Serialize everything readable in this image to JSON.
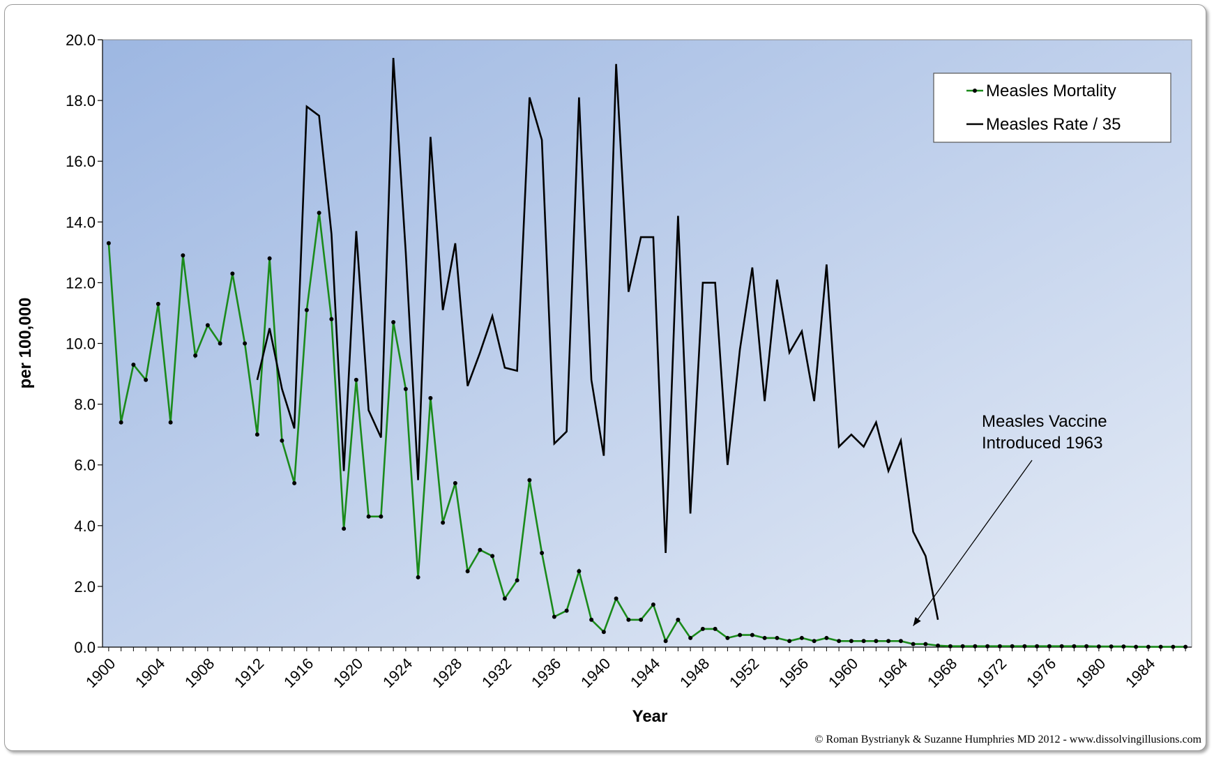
{
  "chart_data": {
    "type": "line",
    "xlabel": "Year",
    "ylabel": "per 100,000",
    "ylim": [
      0,
      20
    ],
    "y_ticks": [
      "0.0",
      "2.0",
      "4.0",
      "6.0",
      "8.0",
      "10.0",
      "12.0",
      "14.0",
      "16.0",
      "18.0",
      "20.0"
    ],
    "x_ticks": [
      "1900",
      "1904",
      "1908",
      "1912",
      "1916",
      "1920",
      "1924",
      "1928",
      "1932",
      "1936",
      "1940",
      "1944",
      "1948",
      "1952",
      "1956",
      "1960",
      "1964",
      "1968",
      "1972",
      "1976",
      "1980",
      "1984"
    ],
    "xlim": [
      1899.5,
      1987.5
    ],
    "series": [
      {
        "name": "Measles Mortality",
        "color": "#1a8a1a",
        "marker_color": "#000000",
        "x": [
          1900,
          1901,
          1902,
          1903,
          1904,
          1905,
          1906,
          1907,
          1908,
          1909,
          1910,
          1911,
          1912,
          1913,
          1914,
          1915,
          1916,
          1917,
          1918,
          1919,
          1920,
          1921,
          1922,
          1923,
          1924,
          1925,
          1926,
          1927,
          1928,
          1929,
          1930,
          1931,
          1932,
          1933,
          1934,
          1935,
          1936,
          1937,
          1938,
          1939,
          1940,
          1941,
          1942,
          1943,
          1944,
          1945,
          1946,
          1947,
          1948,
          1949,
          1950,
          1951,
          1952,
          1953,
          1954,
          1955,
          1956,
          1957,
          1958,
          1959,
          1960,
          1961,
          1962,
          1963,
          1964,
          1965,
          1966,
          1967,
          1968,
          1969,
          1970,
          1971,
          1972,
          1973,
          1974,
          1975,
          1976,
          1977,
          1978,
          1979,
          1980,
          1981,
          1982,
          1983,
          1984,
          1985,
          1986,
          1987
        ],
        "values": [
          13.3,
          7.4,
          9.3,
          8.8,
          11.3,
          7.4,
          12.9,
          9.6,
          10.6,
          10.0,
          12.3,
          10.0,
          7.0,
          12.8,
          6.8,
          5.4,
          11.1,
          14.3,
          10.8,
          3.9,
          8.8,
          4.3,
          4.3,
          10.7,
          8.5,
          2.3,
          8.2,
          4.1,
          5.4,
          2.5,
          3.2,
          3.0,
          1.6,
          2.2,
          5.5,
          3.1,
          1.0,
          1.2,
          2.5,
          0.9,
          0.5,
          1.6,
          0.9,
          0.9,
          1.4,
          0.2,
          0.9,
          0.3,
          0.6,
          0.6,
          0.3,
          0.4,
          0.4,
          0.3,
          0.3,
          0.2,
          0.3,
          0.2,
          0.3,
          0.2,
          0.2,
          0.2,
          0.2,
          0.2,
          0.2,
          0.1,
          0.1,
          0.05,
          0.03,
          0.03,
          0.03,
          0.03,
          0.03,
          0.03,
          0.03,
          0.03,
          0.03,
          0.03,
          0.03,
          0.03,
          0.02,
          0.02,
          0.02,
          0.01,
          0.01,
          0.01,
          0.01,
          0.01
        ]
      },
      {
        "name": "Measles Rate / 35",
        "color": "#000000",
        "x": [
          1912,
          1913,
          1914,
          1915,
          1916,
          1917,
          1918,
          1919,
          1920,
          1921,
          1922,
          1923,
          1924,
          1925,
          1926,
          1927,
          1928,
          1929,
          1930,
          1931,
          1932,
          1933,
          1934,
          1935,
          1936,
          1937,
          1938,
          1939,
          1940,
          1941,
          1942,
          1943,
          1944,
          1945,
          1946,
          1947,
          1948,
          1949,
          1950,
          1951,
          1952,
          1953,
          1954,
          1955,
          1956,
          1957,
          1958,
          1959,
          1960,
          1961,
          1962,
          1963,
          1964,
          1965,
          1966,
          1967
        ],
        "values": [
          8.8,
          10.5,
          8.5,
          7.2,
          17.8,
          17.5,
          13.6,
          5.8,
          13.7,
          7.8,
          6.9,
          19.4,
          13.0,
          5.5,
          16.8,
          11.1,
          13.3,
          8.6,
          9.7,
          10.9,
          9.2,
          9.1,
          18.1,
          16.7,
          6.7,
          7.1,
          18.1,
          8.8,
          6.3,
          19.2,
          11.7,
          13.5,
          13.5,
          3.1,
          14.2,
          4.4,
          12.0,
          12.0,
          6.0,
          9.8,
          12.5,
          8.1,
          12.1,
          9.7,
          10.4,
          8.1,
          12.6,
          6.6,
          7.0,
          6.6,
          7.4,
          5.8,
          6.8,
          3.8,
          3.0,
          0.9
        ]
      }
    ],
    "legend": {
      "position": "top-right",
      "entries": [
        "Measles Mortality",
        "Measles Rate / 35"
      ]
    },
    "annotation": {
      "lines": [
        "Measles Vaccine",
        "Introduced 1963"
      ],
      "target_year": 1965,
      "target_value": 0.7
    },
    "plot_background": {
      "from": "#9db7e2",
      "to": "#e6ecf6"
    }
  },
  "credit": "© Roman Bystrianyk & Suzanne Humphries MD 2012 - www.dissolvingillusions.com"
}
